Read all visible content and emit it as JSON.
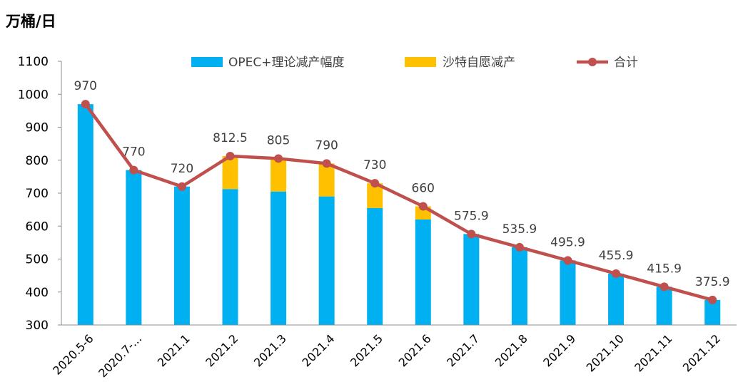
{
  "unit_label": "万桶/日",
  "chart_data": {
    "type": "bar",
    "categories": [
      "2020.5-6",
      "2020.7-...",
      "2021.1",
      "2021.2",
      "2021.3",
      "2021.4",
      "2021.5",
      "2021.6",
      "2021.7",
      "2021.8",
      "2021.9",
      "2021.10",
      "2021.11",
      "2021.12"
    ],
    "series": [
      {
        "name": "OPEC+理论减产幅度",
        "kind": "bar",
        "color": "#00B0F0",
        "values": [
          970,
          770,
          720,
          712.5,
          705,
          690,
          655,
          620,
          575.9,
          535.9,
          495.9,
          455.9,
          415.9,
          375.9
        ]
      },
      {
        "name": "沙特自愿减产",
        "kind": "bar",
        "color": "#FFC000",
        "values": [
          0,
          0,
          0,
          100,
          100,
          100,
          75,
          40,
          0,
          0,
          0,
          0,
          0,
          0
        ]
      },
      {
        "name": "合计",
        "kind": "line",
        "color": "#C0504D",
        "values": [
          970,
          770,
          720,
          812.5,
          805,
          790,
          730,
          660,
          575.9,
          535.9,
          495.9,
          455.9,
          415.9,
          375.9
        ]
      }
    ],
    "data_labels": [
      "970",
      "770",
      "720",
      "812.5",
      "805",
      "790",
      "730",
      "660",
      "575.9",
      "535.9",
      "495.9",
      "455.9",
      "415.9",
      "375.9"
    ],
    "ylim": [
      300,
      1100
    ],
    "yticks": [
      "300",
      "400",
      "500",
      "600",
      "700",
      "800",
      "900",
      "1000",
      "1100"
    ],
    "grid": false,
    "legend_position": "top"
  }
}
